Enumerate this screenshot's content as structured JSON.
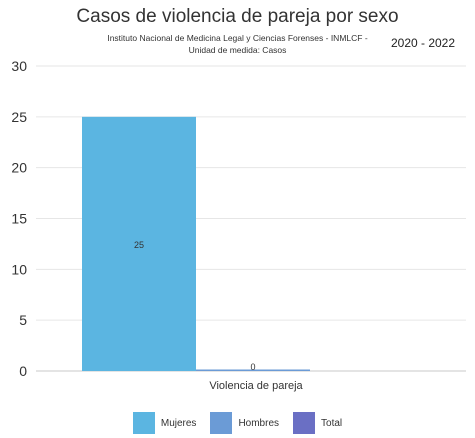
{
  "header": {
    "title": "Casos de violencia de pareja por sexo",
    "source": "Instituto Nacional de Medicina Legal y Ciencias Forenses - INMLCF -",
    "unit": "Unidad de medida: Casos",
    "years": "2020 - 2022"
  },
  "colors": {
    "Mujeres": "#5bb5e1",
    "Hombres": "#6b9bd6",
    "Total": "#6a6fc4",
    "grid": "#e6e6e6",
    "axis": "#c9c9c9"
  },
  "chart_data": {
    "type": "bar",
    "title": "Casos de violencia de pareja por sexo",
    "subtitle": "Instituto Nacional de Medicina Legal y Ciencias Forenses - INMLCF - Unidad de medida: Casos",
    "categories": [
      "Violencia de pareja"
    ],
    "series": [
      {
        "name": "Mujeres",
        "values": [
          25
        ]
      },
      {
        "name": "Hombres",
        "values": [
          0
        ]
      },
      {
        "name": "Total",
        "values": [
          null
        ]
      }
    ],
    "ylim": [
      0,
      30
    ],
    "yticks": [
      0,
      5,
      10,
      15,
      20,
      25,
      30
    ],
    "grid": true,
    "legend": "bottom"
  }
}
